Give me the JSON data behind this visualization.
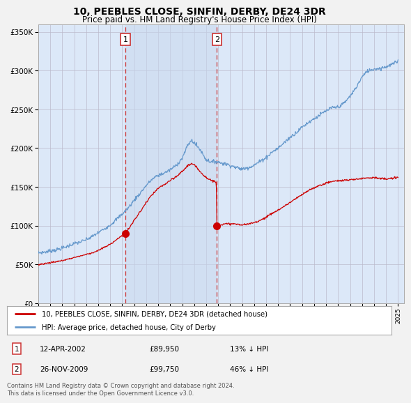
{
  "title": "10, PEEBLES CLOSE, SINFIN, DERBY, DE24 3DR",
  "subtitle": "Price paid vs. HM Land Registry's House Price Index (HPI)",
  "legend_line1": "10, PEEBLES CLOSE, SINFIN, DERBY, DE24 3DR (detached house)",
  "legend_line2": "HPI: Average price, detached house, City of Derby",
  "footnote": "Contains HM Land Registry data © Crown copyright and database right 2024.\nThis data is licensed under the Open Government Licence v3.0.",
  "sale1_price": 89950,
  "sale2_price": 99750,
  "xlim_start": 1995.0,
  "xlim_end": 2025.5,
  "ylim_bottom": 0,
  "ylim_top": 360000,
  "background_plot": "#dce8f8",
  "background_fig": "#f2f2f2",
  "red_color": "#cc0000",
  "blue_color": "#6699cc",
  "sale1_x": 2002.28,
  "sale2_x": 2009.9,
  "hpi_anchors": [
    [
      1995.0,
      65000
    ],
    [
      1995.5,
      66000
    ],
    [
      1996.0,
      67500
    ],
    [
      1996.5,
      69000
    ],
    [
      1997.0,
      71000
    ],
    [
      1997.5,
      74000
    ],
    [
      1998.0,
      77000
    ],
    [
      1998.5,
      79000
    ],
    [
      1999.0,
      82000
    ],
    [
      1999.5,
      86000
    ],
    [
      2000.0,
      91000
    ],
    [
      2000.5,
      96000
    ],
    [
      2001.0,
      101000
    ],
    [
      2001.5,
      108000
    ],
    [
      2002.0,
      115000
    ],
    [
      2002.5,
      123000
    ],
    [
      2003.0,
      133000
    ],
    [
      2003.5,
      142000
    ],
    [
      2004.0,
      152000
    ],
    [
      2004.5,
      160000
    ],
    [
      2005.0,
      165000
    ],
    [
      2005.5,
      168000
    ],
    [
      2006.0,
      172000
    ],
    [
      2006.5,
      178000
    ],
    [
      2007.0,
      187000
    ],
    [
      2007.5,
      205000
    ],
    [
      2007.8,
      210000
    ],
    [
      2008.0,
      207000
    ],
    [
      2008.5,
      198000
    ],
    [
      2009.0,
      185000
    ],
    [
      2009.5,
      182000
    ],
    [
      2009.9,
      183000
    ],
    [
      2010.0,
      182000
    ],
    [
      2010.5,
      180000
    ],
    [
      2011.0,
      178000
    ],
    [
      2011.5,
      175000
    ],
    [
      2012.0,
      173000
    ],
    [
      2012.5,
      175000
    ],
    [
      2013.0,
      178000
    ],
    [
      2013.5,
      183000
    ],
    [
      2014.0,
      188000
    ],
    [
      2014.5,
      195000
    ],
    [
      2015.0,
      200000
    ],
    [
      2015.5,
      207000
    ],
    [
      2016.0,
      214000
    ],
    [
      2016.5,
      220000
    ],
    [
      2017.0,
      227000
    ],
    [
      2017.5,
      233000
    ],
    [
      2018.0,
      238000
    ],
    [
      2018.5,
      243000
    ],
    [
      2019.0,
      248000
    ],
    [
      2019.5,
      252000
    ],
    [
      2020.0,
      253000
    ],
    [
      2020.5,
      258000
    ],
    [
      2021.0,
      267000
    ],
    [
      2021.5,
      278000
    ],
    [
      2022.0,
      292000
    ],
    [
      2022.5,
      300000
    ],
    [
      2023.0,
      302000
    ],
    [
      2023.5,
      303000
    ],
    [
      2024.0,
      305000
    ],
    [
      2024.5,
      308000
    ],
    [
      2025.0,
      312000
    ]
  ],
  "red_anchors_pre": [
    [
      1995.0,
      50000
    ],
    [
      1995.5,
      51000
    ],
    [
      1996.0,
      52500
    ],
    [
      1996.5,
      53500
    ],
    [
      1997.0,
      55000
    ],
    [
      1997.5,
      57000
    ],
    [
      1998.0,
      59000
    ],
    [
      1998.5,
      61000
    ],
    [
      1999.0,
      63000
    ],
    [
      1999.5,
      65000
    ],
    [
      2000.0,
      68000
    ],
    [
      2000.5,
      72000
    ],
    [
      2001.0,
      76000
    ],
    [
      2001.5,
      82000
    ],
    [
      2002.0,
      87000
    ],
    [
      2002.28,
      89950
    ]
  ],
  "red_anchors_mid": [
    [
      2002.28,
      89950
    ],
    [
      2002.5,
      95000
    ],
    [
      2003.0,
      107000
    ],
    [
      2003.5,
      118000
    ],
    [
      2004.0,
      130000
    ],
    [
      2004.5,
      140000
    ],
    [
      2005.0,
      148000
    ],
    [
      2005.5,
      153000
    ],
    [
      2006.0,
      158000
    ],
    [
      2006.5,
      163000
    ],
    [
      2007.0,
      170000
    ],
    [
      2007.3,
      175000
    ],
    [
      2007.5,
      178000
    ],
    [
      2007.8,
      180000
    ],
    [
      2008.0,
      178000
    ],
    [
      2008.2,
      175000
    ],
    [
      2008.5,
      170000
    ],
    [
      2009.0,
      162000
    ],
    [
      2009.5,
      158000
    ],
    [
      2009.7,
      157000
    ],
    [
      2009.85,
      156000
    ],
    [
      2009.9,
      99750
    ]
  ],
  "red_anchors_post": [
    [
      2009.9,
      99750
    ],
    [
      2010.0,
      100500
    ],
    [
      2010.2,
      101000
    ],
    [
      2010.5,
      102000
    ],
    [
      2011.0,
      102500
    ],
    [
      2011.5,
      102000
    ],
    [
      2012.0,
      101000
    ],
    [
      2012.5,
      102000
    ],
    [
      2013.0,
      104000
    ],
    [
      2013.5,
      107000
    ],
    [
      2014.0,
      111000
    ],
    [
      2014.5,
      116000
    ],
    [
      2015.0,
      120000
    ],
    [
      2015.5,
      125000
    ],
    [
      2016.0,
      130000
    ],
    [
      2016.5,
      135000
    ],
    [
      2017.0,
      140000
    ],
    [
      2017.5,
      145000
    ],
    [
      2018.0,
      149000
    ],
    [
      2018.5,
      152000
    ],
    [
      2019.0,
      155000
    ],
    [
      2019.5,
      157000
    ],
    [
      2020.0,
      158000
    ],
    [
      2020.5,
      158500
    ],
    [
      2021.0,
      159000
    ],
    [
      2021.5,
      160000
    ],
    [
      2022.0,
      161000
    ],
    [
      2022.5,
      162000
    ],
    [
      2023.0,
      162000
    ],
    [
      2023.5,
      161000
    ],
    [
      2024.0,
      160000
    ],
    [
      2024.5,
      161000
    ],
    [
      2025.0,
      162000
    ]
  ]
}
